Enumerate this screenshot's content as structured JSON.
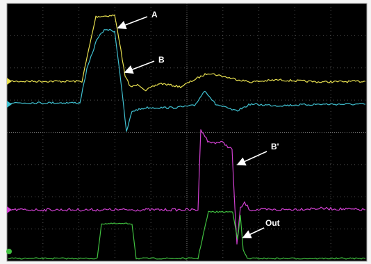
{
  "labels": {
    "a": "A",
    "b": "B",
    "b_prime": "B'",
    "out": "Out"
  }
}
